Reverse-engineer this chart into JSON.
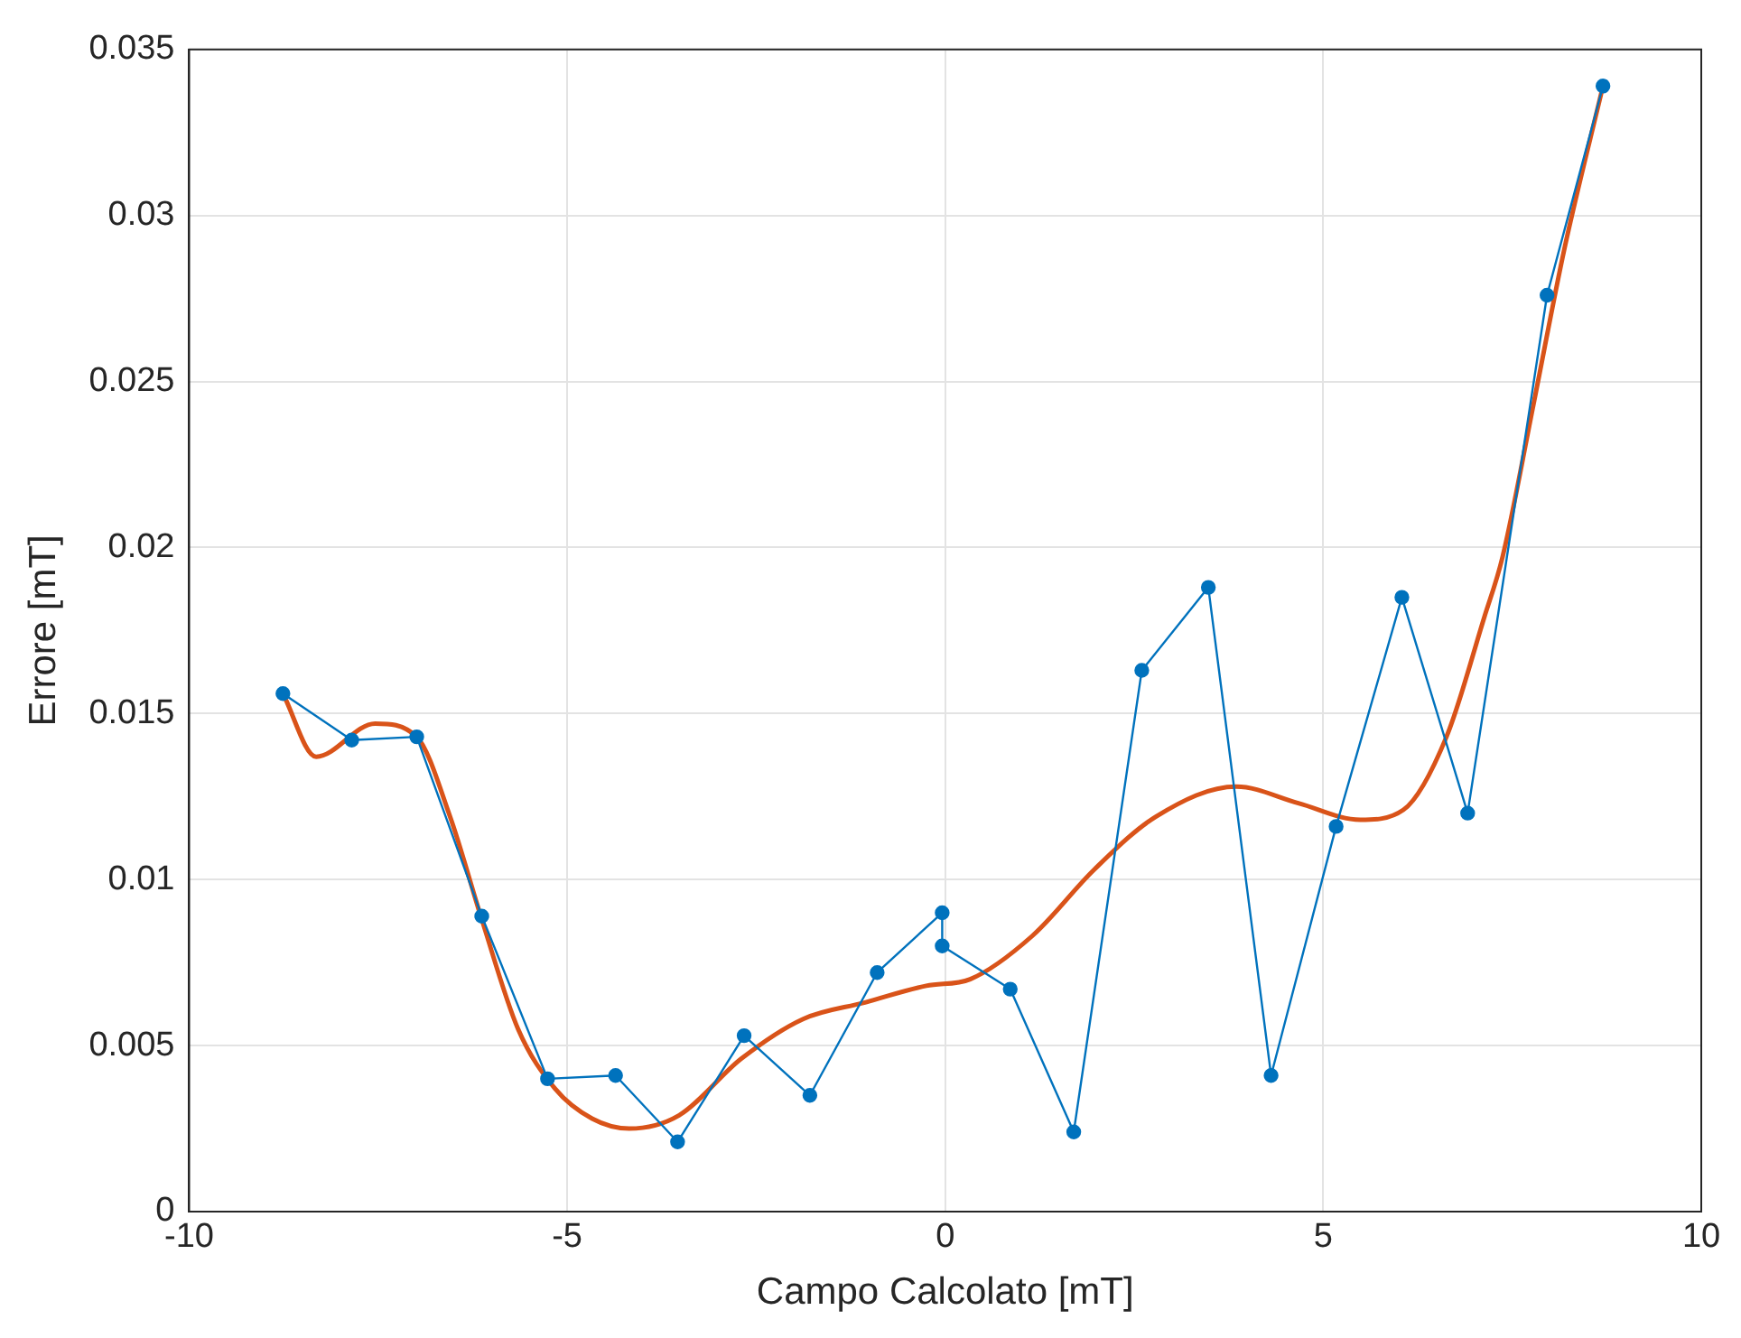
{
  "chart_data": {
    "type": "line",
    "xlabel": "Campo Calcolato [mT]",
    "ylabel": "Errore [mT]",
    "xlim": [
      -10,
      10
    ],
    "xticks": [
      -10,
      -5,
      0,
      5,
      10
    ],
    "ylim": [
      0,
      0.035
    ],
    "yticks": [
      0,
      0.005,
      0.01,
      0.015,
      0.02,
      0.025,
      0.03,
      0.035
    ],
    "grid": true,
    "legend": false,
    "series": [
      {
        "color": "#0072bd",
        "marker": "circle",
        "x": [
          -8.76,
          -7.85,
          -6.99,
          -6.13,
          -5.26,
          -4.36,
          -3.54,
          -2.66,
          -1.79,
          -0.9,
          -0.04,
          -0.04,
          0.86,
          1.7,
          2.6,
          3.48,
          4.31,
          5.17,
          6.04,
          6.91,
          7.96,
          8.7
        ],
        "values": [
          0.0156,
          0.0142,
          0.0143,
          0.0089,
          0.004,
          0.0041,
          0.0021,
          0.0053,
          0.0035,
          0.0072,
          0.009,
          0.008,
          0.0067,
          0.0024,
          0.0163,
          0.0188,
          0.0041,
          0.0116,
          0.0185,
          0.012,
          0.0276,
          0.0339
        ]
      },
      {
        "color": "#d95319",
        "marker": "none",
        "x": [
          -8.76,
          -8.32,
          -7.54,
          -6.99,
          -6.55,
          -6.13,
          -5.65,
          -5.16,
          -4.67,
          -4.18,
          -3.52,
          -2.7,
          -1.88,
          -1.06,
          -0.25,
          0.33,
          1.15,
          1.97,
          2.79,
          3.85,
          4.67,
          5.49,
          6.06,
          6.63,
          7.13,
          7.37,
          7.78,
          8.19,
          8.7
        ],
        "values": [
          0.0156,
          0.0137,
          0.0147,
          0.0143,
          0.0119,
          0.0088,
          0.0055,
          0.0037,
          0.0028,
          0.0025,
          0.0029,
          0.0046,
          0.0058,
          0.0063,
          0.0068,
          0.007,
          0.0083,
          0.0103,
          0.0119,
          0.0128,
          0.0123,
          0.0118,
          0.0121,
          0.0143,
          0.0179,
          0.0197,
          0.0243,
          0.029,
          0.0339
        ]
      }
    ]
  }
}
